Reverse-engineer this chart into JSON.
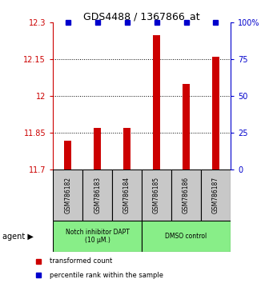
{
  "title": "GDS4488 / 1367866_at",
  "samples": [
    "GSM786182",
    "GSM786183",
    "GSM786184",
    "GSM786185",
    "GSM786186",
    "GSM786187"
  ],
  "bar_values": [
    11.82,
    11.87,
    11.87,
    12.25,
    12.05,
    12.16
  ],
  "percentile_values": [
    100,
    100,
    100,
    100,
    100,
    100
  ],
  "ylim_left": [
    11.7,
    12.3
  ],
  "ylim_right": [
    0,
    100
  ],
  "yticks_left": [
    11.7,
    11.85,
    12.0,
    12.15,
    12.3
  ],
  "ytick_labels_left": [
    "11.7",
    "11.85",
    "12",
    "12.15",
    "12.3"
  ],
  "yticks_right": [
    0,
    25,
    50,
    75,
    100
  ],
  "ytick_labels_right": [
    "0",
    "25",
    "50",
    "75",
    "100%"
  ],
  "hlines": [
    11.85,
    12.0,
    12.15
  ],
  "bar_color": "#cc0000",
  "dot_color": "#0000cc",
  "group1_label": "Notch inhibitor DAPT\n(10 μM.)",
  "group2_label": "DMSO control",
  "group_bg_color": "#88ee88",
  "sample_bg_color": "#c8c8c8",
  "legend_transformed": "transformed count",
  "legend_percentile": "percentile rank within the sample",
  "agent_label": "agent"
}
